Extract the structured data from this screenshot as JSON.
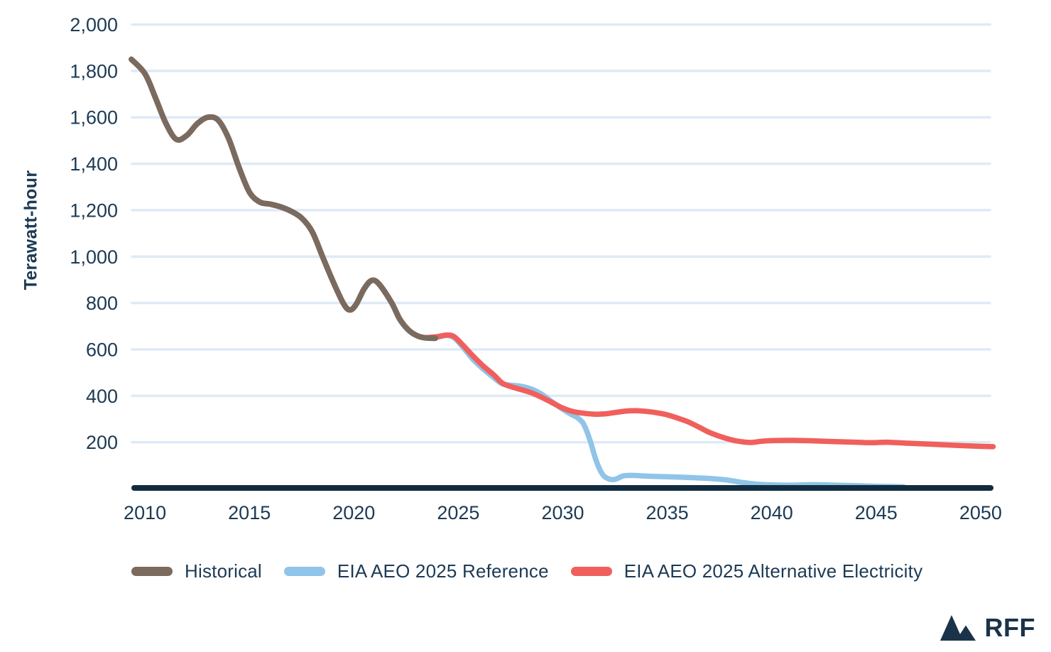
{
  "branding": {
    "logo_text": "RFF"
  },
  "colors": {
    "axis": "#112c40",
    "grid": "#dfeaf7",
    "tick_text": "#1c3a54",
    "logo": "#1a3349",
    "background": "#ffffff"
  },
  "chart_data": {
    "type": "line",
    "title": "",
    "xlabel": "",
    "ylabel": "Terawatt-hour",
    "grid": "horizontal",
    "legend_position": "bottom",
    "xlim": [
      2009.35,
      2050.65
    ],
    "ylim": [
      0,
      2100
    ],
    "x_ticks": [
      2010,
      2015,
      2020,
      2025,
      2030,
      2035,
      2040,
      2045,
      2050
    ],
    "x_tick_labels": [
      "2010",
      "2015",
      "2020",
      "2025",
      "2030",
      "2035",
      "2040",
      "2045",
      "2050"
    ],
    "y_ticks": [
      200,
      400,
      600,
      800,
      1000,
      1200,
      1400,
      1600,
      1800,
      2000
    ],
    "y_tick_labels": [
      "200",
      "400",
      "600",
      "800",
      "1,000",
      "1,200",
      "1,400",
      "1,600",
      "1,800",
      "2,000"
    ],
    "series": [
      {
        "name": "Historical",
        "color": "#7b6a5e",
        "stroke_width": 8,
        "z": 3,
        "points": [
          [
            2009.35,
            1850
          ],
          [
            2010,
            1788
          ],
          [
            2010.5,
            1685
          ],
          [
            2011,
            1575
          ],
          [
            2011.5,
            1505
          ],
          [
            2012,
            1522
          ],
          [
            2012.5,
            1572
          ],
          [
            2013,
            1600
          ],
          [
            2013.5,
            1588
          ],
          [
            2014,
            1510
          ],
          [
            2014.5,
            1385
          ],
          [
            2015,
            1278
          ],
          [
            2015.5,
            1235
          ],
          [
            2016,
            1226
          ],
          [
            2016.5,
            1214
          ],
          [
            2017,
            1195
          ],
          [
            2017.5,
            1166
          ],
          [
            2018,
            1108
          ],
          [
            2018.5,
            1000
          ],
          [
            2019,
            893
          ],
          [
            2019.5,
            798
          ],
          [
            2019.8,
            770
          ],
          [
            2020.1,
            793
          ],
          [
            2020.5,
            862
          ],
          [
            2020.85,
            897
          ],
          [
            2021.2,
            882
          ],
          [
            2021.8,
            802
          ],
          [
            2022.2,
            730
          ],
          [
            2022.6,
            685
          ],
          [
            2023,
            660
          ],
          [
            2023.4,
            650
          ],
          [
            2023.9,
            648
          ]
        ]
      },
      {
        "name": "EIA AEO 2025 Reference",
        "color": "#90c4e9",
        "stroke_width": 7.5,
        "z": 1,
        "points": [
          [
            2023.4,
            650
          ],
          [
            2024,
            653
          ],
          [
            2024.45,
            660
          ],
          [
            2024.8,
            650
          ],
          [
            2025.2,
            612
          ],
          [
            2025.7,
            557
          ],
          [
            2026.2,
            515
          ],
          [
            2026.7,
            478
          ],
          [
            2027.1,
            452
          ],
          [
            2027.5,
            446
          ],
          [
            2028,
            441
          ],
          [
            2028.5,
            429
          ],
          [
            2029,
            406
          ],
          [
            2029.5,
            373
          ],
          [
            2030,
            342
          ],
          [
            2030.4,
            320
          ],
          [
            2030.7,
            306
          ],
          [
            2031,
            278
          ],
          [
            2031.3,
            210
          ],
          [
            2031.6,
            120
          ],
          [
            2031.9,
            62
          ],
          [
            2032.2,
            42
          ],
          [
            2032.5,
            40
          ],
          [
            2032.9,
            55
          ],
          [
            2033.3,
            57
          ],
          [
            2034,
            54
          ],
          [
            2035,
            51
          ],
          [
            2036,
            48
          ],
          [
            2037,
            44
          ],
          [
            2037.8,
            38
          ],
          [
            2038.5,
            28
          ],
          [
            2039.2,
            20
          ],
          [
            2040,
            16
          ],
          [
            2041,
            15
          ],
          [
            2042,
            17
          ],
          [
            2043,
            15
          ],
          [
            2044,
            13
          ],
          [
            2045,
            10
          ],
          [
            2046.3,
            8
          ]
        ]
      },
      {
        "name": "EIA AEO 2025 Alternative Electricity",
        "color": "#f05f5c",
        "stroke_width": 7.5,
        "z": 2,
        "points": [
          [
            2023.4,
            650
          ],
          [
            2024,
            655
          ],
          [
            2024.45,
            662
          ],
          [
            2024.8,
            655
          ],
          [
            2025.2,
            620
          ],
          [
            2025.7,
            572
          ],
          [
            2026.2,
            528
          ],
          [
            2026.7,
            490
          ],
          [
            2027.1,
            455
          ],
          [
            2027.5,
            440
          ],
          [
            2028,
            427
          ],
          [
            2028.5,
            413
          ],
          [
            2029,
            393
          ],
          [
            2029.5,
            370
          ],
          [
            2030,
            347
          ],
          [
            2030.5,
            332
          ],
          [
            2031,
            325
          ],
          [
            2031.5,
            321
          ],
          [
            2032,
            322
          ],
          [
            2032.5,
            328
          ],
          [
            2033,
            334
          ],
          [
            2033.5,
            336
          ],
          [
            2034,
            333
          ],
          [
            2034.5,
            327
          ],
          [
            2035,
            318
          ],
          [
            2035.5,
            304
          ],
          [
            2036,
            288
          ],
          [
            2036.5,
            266
          ],
          [
            2037,
            243
          ],
          [
            2037.5,
            226
          ],
          [
            2038,
            212
          ],
          [
            2038.5,
            203
          ],
          [
            2039,
            199
          ],
          [
            2039.5,
            204
          ],
          [
            2040,
            207
          ],
          [
            2041,
            208
          ],
          [
            2042,
            206
          ],
          [
            2043,
            203
          ],
          [
            2044,
            200
          ],
          [
            2044.8,
            198
          ],
          [
            2045.5,
            200
          ],
          [
            2046.5,
            196
          ],
          [
            2047.5,
            192
          ],
          [
            2048.5,
            188
          ],
          [
            2049.5,
            184
          ],
          [
            2050.6,
            181
          ]
        ]
      }
    ]
  }
}
